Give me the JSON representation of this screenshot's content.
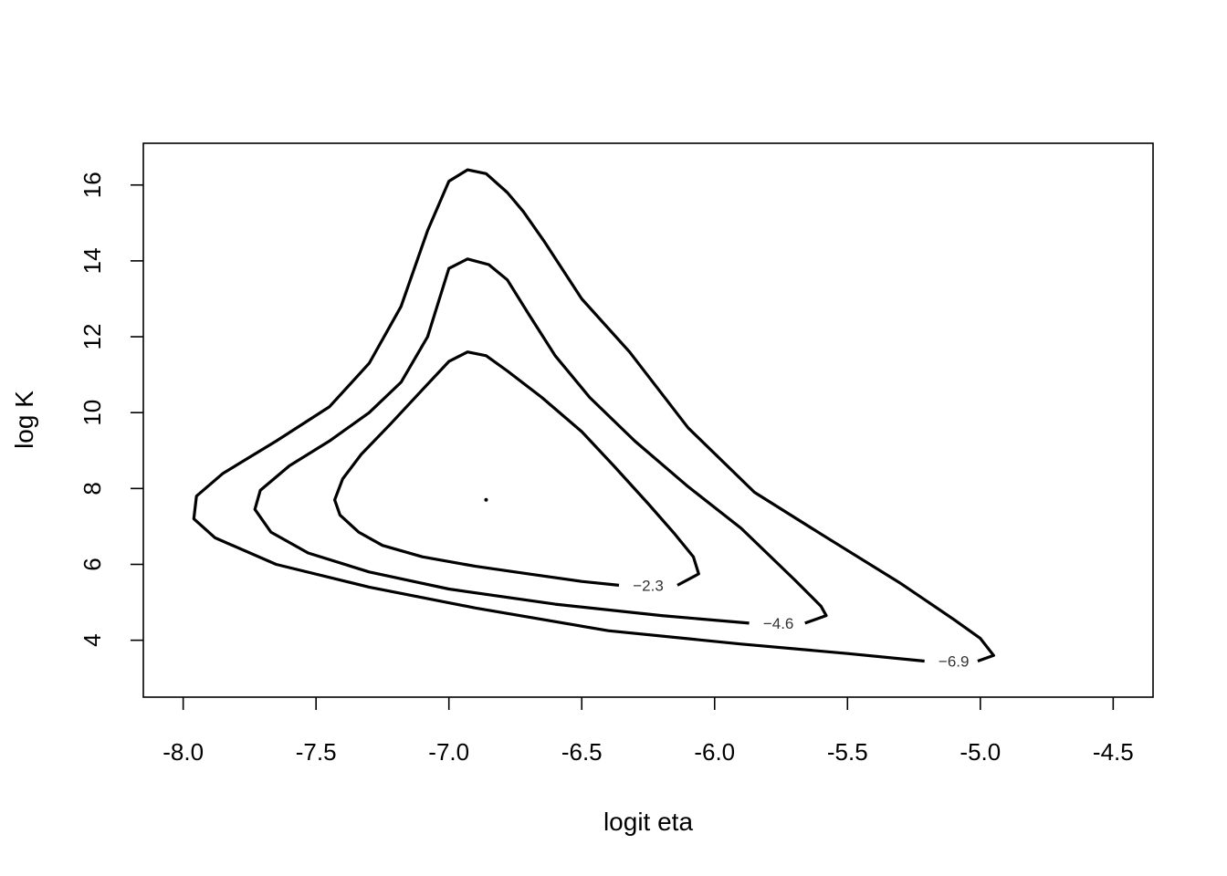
{
  "chart_data": {
    "type": "contour",
    "xlabel": "logit eta",
    "ylabel": "log K",
    "xlim": [
      -8.15,
      -4.35
    ],
    "ylim": [
      2.5,
      17.1
    ],
    "x_ticks": [
      "-8.0",
      "-7.5",
      "-7.0",
      "-6.5",
      "-6.0",
      "-5.5",
      "-5.0",
      "-4.5"
    ],
    "x_tick_values": [
      -8.0,
      -7.5,
      -7.0,
      -6.5,
      -6.0,
      -5.5,
      -5.0,
      -4.5
    ],
    "y_ticks": [
      "4",
      "6",
      "8",
      "10",
      "12",
      "14",
      "16"
    ],
    "y_tick_values": [
      4,
      6,
      8,
      10,
      12,
      14,
      16
    ],
    "maximum_point": {
      "x": -6.86,
      "y": 7.7
    },
    "contours": [
      {
        "level": "−2.3",
        "label_at": {
          "x": -6.25,
          "y": 5.45
        },
        "points": [
          [
            -6.36,
            5.45
          ],
          [
            -6.5,
            5.55
          ],
          [
            -6.7,
            5.75
          ],
          [
            -6.9,
            5.95
          ],
          [
            -7.1,
            6.2
          ],
          [
            -7.25,
            6.5
          ],
          [
            -7.34,
            6.85
          ],
          [
            -7.41,
            7.3
          ],
          [
            -7.43,
            7.7
          ],
          [
            -7.4,
            8.25
          ],
          [
            -7.33,
            8.9
          ],
          [
            -7.22,
            9.7
          ],
          [
            -7.1,
            10.6
          ],
          [
            -7.0,
            11.35
          ],
          [
            -6.93,
            11.6
          ],
          [
            -6.86,
            11.5
          ],
          [
            -6.78,
            11.1
          ],
          [
            -6.65,
            10.4
          ],
          [
            -6.5,
            9.5
          ],
          [
            -6.38,
            8.6
          ],
          [
            -6.25,
            7.6
          ],
          [
            -6.15,
            6.8
          ],
          [
            -6.08,
            6.2
          ],
          [
            -6.06,
            5.75
          ],
          [
            -6.14,
            5.45
          ]
        ]
      },
      {
        "level": "−4.6",
        "label_at": {
          "x": -5.76,
          "y": 4.45
        },
        "points": [
          [
            -5.87,
            4.45
          ],
          [
            -6.2,
            4.65
          ],
          [
            -6.6,
            4.95
          ],
          [
            -7.0,
            5.35
          ],
          [
            -7.3,
            5.8
          ],
          [
            -7.53,
            6.3
          ],
          [
            -7.67,
            6.85
          ],
          [
            -7.73,
            7.45
          ],
          [
            -7.71,
            7.95
          ],
          [
            -7.6,
            8.6
          ],
          [
            -7.45,
            9.25
          ],
          [
            -7.3,
            10.0
          ],
          [
            -7.18,
            10.8
          ],
          [
            -7.08,
            12.0
          ],
          [
            -7.0,
            13.8
          ],
          [
            -6.93,
            14.05
          ],
          [
            -6.85,
            13.9
          ],
          [
            -6.78,
            13.5
          ],
          [
            -6.7,
            12.6
          ],
          [
            -6.6,
            11.5
          ],
          [
            -6.47,
            10.4
          ],
          [
            -6.3,
            9.25
          ],
          [
            -6.1,
            8.05
          ],
          [
            -5.9,
            6.95
          ],
          [
            -5.7,
            5.6
          ],
          [
            -5.6,
            4.9
          ],
          [
            -5.58,
            4.65
          ],
          [
            -5.66,
            4.45
          ]
        ]
      },
      {
        "level": "−6.9",
        "label_at": {
          "x": -5.1,
          "y": 3.45
        },
        "points": [
          [
            -5.21,
            3.45
          ],
          [
            -5.5,
            3.65
          ],
          [
            -5.9,
            3.9
          ],
          [
            -6.4,
            4.25
          ],
          [
            -6.9,
            4.85
          ],
          [
            -7.3,
            5.4
          ],
          [
            -7.65,
            6.0
          ],
          [
            -7.88,
            6.7
          ],
          [
            -7.96,
            7.2
          ],
          [
            -7.95,
            7.8
          ],
          [
            -7.85,
            8.4
          ],
          [
            -7.65,
            9.25
          ],
          [
            -7.45,
            10.15
          ],
          [
            -7.3,
            11.3
          ],
          [
            -7.18,
            12.8
          ],
          [
            -7.08,
            14.8
          ],
          [
            -7.0,
            16.1
          ],
          [
            -6.93,
            16.4
          ],
          [
            -6.86,
            16.3
          ],
          [
            -6.78,
            15.8
          ],
          [
            -6.72,
            15.3
          ],
          [
            -6.64,
            14.5
          ],
          [
            -6.5,
            13.0
          ],
          [
            -6.32,
            11.6
          ],
          [
            -6.1,
            9.6
          ],
          [
            -5.85,
            7.9
          ],
          [
            -5.6,
            6.8
          ],
          [
            -5.3,
            5.5
          ],
          [
            -5.1,
            4.55
          ],
          [
            -5.0,
            4.05
          ],
          [
            -4.95,
            3.6
          ],
          [
            -5.01,
            3.45
          ]
        ]
      }
    ]
  }
}
